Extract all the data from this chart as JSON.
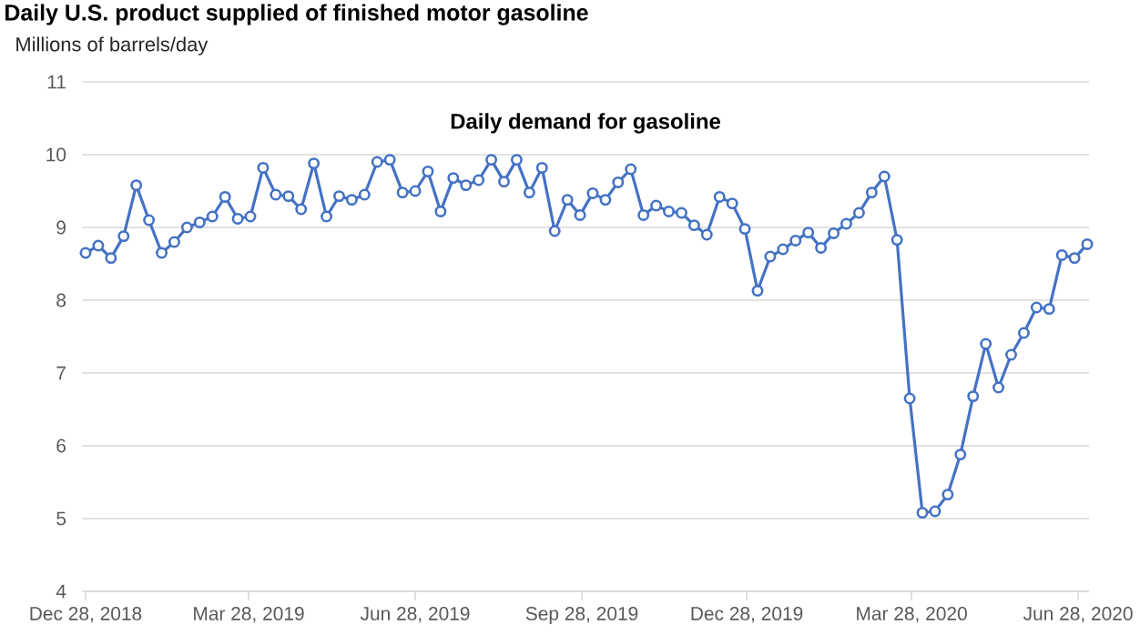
{
  "chart_data": {
    "type": "line",
    "title": "Daily U.S. product supplied of finished motor gasoline",
    "ylabel": "Millions of barrels/day",
    "subtitle": "Daily demand for gasoline",
    "x": [
      "2018-12-28",
      "2019-01-04",
      "2019-01-11",
      "2019-01-18",
      "2019-01-25",
      "2019-02-01",
      "2019-02-08",
      "2019-02-15",
      "2019-02-22",
      "2019-03-01",
      "2019-03-08",
      "2019-03-15",
      "2019-03-22",
      "2019-03-29",
      "2019-04-05",
      "2019-04-12",
      "2019-04-19",
      "2019-04-26",
      "2019-05-03",
      "2019-05-10",
      "2019-05-17",
      "2019-05-24",
      "2019-05-31",
      "2019-06-07",
      "2019-06-14",
      "2019-06-21",
      "2019-06-28",
      "2019-07-05",
      "2019-07-12",
      "2019-07-19",
      "2019-07-26",
      "2019-08-02",
      "2019-08-09",
      "2019-08-16",
      "2019-08-23",
      "2019-08-30",
      "2019-09-06",
      "2019-09-13",
      "2019-09-20",
      "2019-09-27",
      "2019-10-04",
      "2019-10-11",
      "2019-10-18",
      "2019-10-25",
      "2019-11-01",
      "2019-11-08",
      "2019-11-15",
      "2019-11-22",
      "2019-11-29",
      "2019-12-06",
      "2019-12-13",
      "2019-12-20",
      "2019-12-27",
      "2020-01-03",
      "2020-01-10",
      "2020-01-17",
      "2020-01-24",
      "2020-01-31",
      "2020-02-07",
      "2020-02-14",
      "2020-02-21",
      "2020-02-28",
      "2020-03-06",
      "2020-03-13",
      "2020-03-20",
      "2020-03-27",
      "2020-04-03",
      "2020-04-10",
      "2020-04-17",
      "2020-04-24",
      "2020-05-01",
      "2020-05-08",
      "2020-05-15",
      "2020-05-22",
      "2020-05-29",
      "2020-06-05",
      "2020-06-12",
      "2020-06-19",
      "2020-06-26",
      "2020-07-03"
    ],
    "series": [
      {
        "color": "#4472c4",
        "values": [
          8.65,
          8.75,
          8.58,
          8.88,
          9.58,
          9.1,
          8.65,
          8.8,
          9.0,
          9.07,
          9.15,
          9.42,
          9.12,
          9.15,
          9.82,
          9.45,
          9.43,
          9.25,
          9.88,
          9.15,
          9.43,
          9.38,
          9.45,
          9.9,
          9.93,
          9.48,
          9.5,
          9.77,
          9.22,
          9.68,
          9.58,
          9.65,
          9.93,
          9.63,
          9.93,
          9.48,
          9.82,
          8.95,
          9.38,
          9.17,
          9.47,
          9.38,
          9.62,
          9.8,
          9.17,
          9.3,
          9.22,
          9.2,
          9.03,
          8.9,
          9.42,
          9.33,
          8.98,
          8.13,
          8.6,
          8.7,
          8.82,
          8.93,
          8.72,
          8.92,
          9.05,
          9.2,
          9.48,
          9.7,
          8.83,
          6.65,
          5.08,
          5.1,
          5.33,
          5.88,
          6.68,
          7.4,
          6.8,
          7.25,
          7.55,
          7.9,
          7.88,
          8.62,
          8.58,
          8.77
        ]
      }
    ],
    "xlim": [
      "2018-12-26",
      "2020-07-04"
    ],
    "ylim": [
      4,
      11
    ],
    "yticks": [
      4,
      5,
      6,
      7,
      8,
      9,
      10,
      11
    ],
    "xticks": [
      {
        "value": "2018-12-28",
        "label": "Dec 28, 2018"
      },
      {
        "value": "2019-03-28",
        "label": "Mar 28, 2019"
      },
      {
        "value": "2019-06-28",
        "label": "Jun 28, 2019"
      },
      {
        "value": "2019-09-28",
        "label": "Sep 28, 2019"
      },
      {
        "value": "2019-12-28",
        "label": "Dec 28, 2019"
      },
      {
        "value": "2020-03-28",
        "label": "Mar 28, 2020"
      },
      {
        "value": "2020-06-28",
        "label": "Jun 28, 2020"
      }
    ],
    "grid": "y",
    "marker": "circle",
    "line_style": "solid",
    "legend": false
  }
}
